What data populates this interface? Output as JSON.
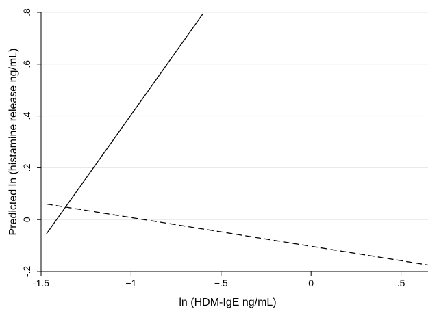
{
  "chart_data": {
    "type": "line",
    "title": "",
    "xlabel": "ln (HDM-IgE ng/mL)",
    "ylabel": "Predicted ln (histamine release ng/mL)",
    "xlim": [
      -1.5,
      0.65
    ],
    "ylim": [
      -0.2,
      0.8
    ],
    "x_ticks": [
      -1.5,
      -1,
      -0.5,
      0,
      0.5
    ],
    "x_tick_labels": [
      "-1.5",
      "−1",
      "−.5",
      "0",
      ".5"
    ],
    "y_ticks": [
      -0.2,
      0,
      0.2,
      0.4,
      0.6,
      0.8
    ],
    "y_tick_labels": [
      "-.2",
      "0",
      ".2",
      ".4",
      ".6",
      ".8"
    ],
    "grid": "horizontal",
    "legend": "none",
    "series": [
      {
        "style": "solid",
        "color": "#000000",
        "x": [
          -1.47,
          -0.6
        ],
        "y": [
          -0.055,
          0.795
        ]
      },
      {
        "style": "dashed",
        "color": "#000000",
        "x": [
          -1.47,
          0.65
        ],
        "y": [
          0.06,
          -0.175
        ]
      }
    ]
  }
}
